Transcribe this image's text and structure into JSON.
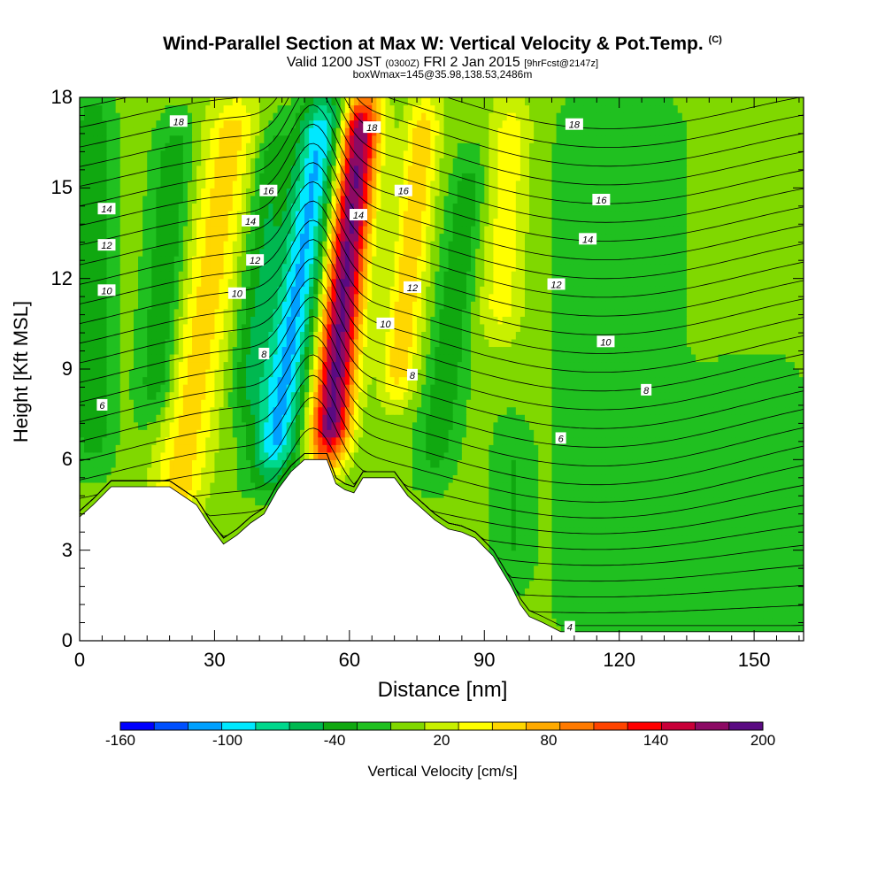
{
  "title": {
    "main": "Wind-Parallel Section at Max W: Vertical Velocity & Pot.Temp.",
    "mark": "(C)",
    "valid_prefix": "Valid 1200 JST",
    "valid_utc": "(0300Z)",
    "valid_date": "FRI 2 Jan 2015",
    "forecast": "[9hrFcst@2147z]",
    "box": "boxWmax=145@35.98,138.53,2486m"
  },
  "chart_data": {
    "type": "heatmap",
    "xlabel": "Distance [nm]",
    "ylabel": "Height [Kft MSL]",
    "xlim": [
      0,
      161
    ],
    "ylim": [
      0,
      18
    ],
    "x_ticks": [
      "0",
      "30",
      "60",
      "90",
      "120",
      "150"
    ],
    "y_ticks": [
      "0",
      "3",
      "6",
      "9",
      "12",
      "15",
      "18"
    ],
    "colorbar": {
      "label": "Vertical Velocity [cm/s]",
      "tick_labels": [
        "-160",
        "-100",
        "-40",
        "20",
        "80",
        "140",
        "200"
      ],
      "levels": [
        -160,
        -140,
        -120,
        -100,
        -80,
        -60,
        -40,
        -20,
        0,
        20,
        40,
        60,
        80,
        100,
        120,
        140,
        160,
        180,
        200
      ],
      "colors": [
        "#0000ff",
        "#0050ff",
        "#00a0ff",
        "#00e8ff",
        "#00d88c",
        "#00b850",
        "#10a810",
        "#20c020",
        "#80d800",
        "#c8f000",
        "#ffff00",
        "#ffd700",
        "#ffaa00",
        "#ff7a00",
        "#ff4400",
        "#ff0000",
        "#c80038",
        "#8c0a64",
        "#5a0a82"
      ]
    },
    "theta_contour_labels": [
      "4",
      "6",
      "8",
      "10",
      "12",
      "14",
      "16",
      "18"
    ],
    "terrain_profile_kft": [
      [
        0,
        4.1
      ],
      [
        3,
        4.5
      ],
      [
        7,
        5.1
      ],
      [
        20,
        5.1
      ],
      [
        23,
        4.8
      ],
      [
        26,
        4.5
      ],
      [
        29,
        3.8
      ],
      [
        32,
        3.2
      ],
      [
        35,
        3.5
      ],
      [
        38,
        3.9
      ],
      [
        41,
        4.2
      ],
      [
        44,
        5.0
      ],
      [
        47,
        5.6
      ],
      [
        50,
        6.0
      ],
      [
        55,
        6.0
      ],
      [
        57,
        5.2
      ],
      [
        59,
        5.0
      ],
      [
        61,
        4.9
      ],
      [
        63,
        5.4
      ],
      [
        70,
        5.4
      ],
      [
        73,
        4.8
      ],
      [
        76,
        4.4
      ],
      [
        79,
        4.0
      ],
      [
        82,
        3.7
      ],
      [
        85,
        3.6
      ],
      [
        88,
        3.4
      ],
      [
        90,
        3.1
      ],
      [
        92,
        2.8
      ],
      [
        94,
        2.3
      ],
      [
        96,
        1.8
      ],
      [
        98,
        1.2
      ],
      [
        100,
        0.8
      ],
      [
        103,
        0.6
      ],
      [
        107,
        0.3
      ],
      [
        161,
        0.3
      ]
    ],
    "vertical_velocity_bands": [
      {
        "x": 49,
        "half_width": 5,
        "tilt": 6,
        "peak_cm_s": -110,
        "from_kft": 5.5,
        "to_kft": 18
      },
      {
        "x": 59,
        "half_width": 4.5,
        "tilt": 4,
        "peak_cm_s": 200,
        "from_kft": 6.0,
        "to_kft": 18
      },
      {
        "x": 29,
        "half_width": 6,
        "tilt": 6,
        "peak_cm_s": 65,
        "from_kft": 4.0,
        "to_kft": 18
      },
      {
        "x": 73,
        "half_width": 4,
        "tilt": 4,
        "peak_cm_s": 70,
        "from_kft": 8.0,
        "to_kft": 18
      },
      {
        "x": 19,
        "half_width": 4,
        "tilt": 3,
        "peak_cm_s": -45,
        "from_kft": 7.5,
        "to_kft": 17
      },
      {
        "x": 40,
        "half_width": 4,
        "tilt": 4,
        "peak_cm_s": -45,
        "from_kft": 7.5,
        "to_kft": 17
      },
      {
        "x": 3,
        "half_width": 4,
        "tilt": 0,
        "peak_cm_s": -45,
        "from_kft": 6.0,
        "to_kft": 18
      },
      {
        "x": 84,
        "half_width": 4,
        "tilt": 5,
        "peak_cm_s": -40,
        "from_kft": 5.5,
        "to_kft": 16
      },
      {
        "x": 94,
        "half_width": 5,
        "tilt": 2,
        "peak_cm_s": 45,
        "from_kft": 10,
        "to_kft": 18
      },
      {
        "x": 96,
        "half_width": 4,
        "tilt": 0,
        "peak_cm_s": -25,
        "from_kft": 2.0,
        "to_kft": 7
      },
      {
        "x": 120,
        "half_width": 12,
        "tilt": 0,
        "peak_cm_s": -25,
        "from_kft": 0,
        "to_kft": 18
      },
      {
        "x": 150,
        "half_width": 10,
        "tilt": 0,
        "peak_cm_s": -25,
        "from_kft": 0,
        "to_kft": 9
      }
    ],
    "background_cm_s": 5
  }
}
